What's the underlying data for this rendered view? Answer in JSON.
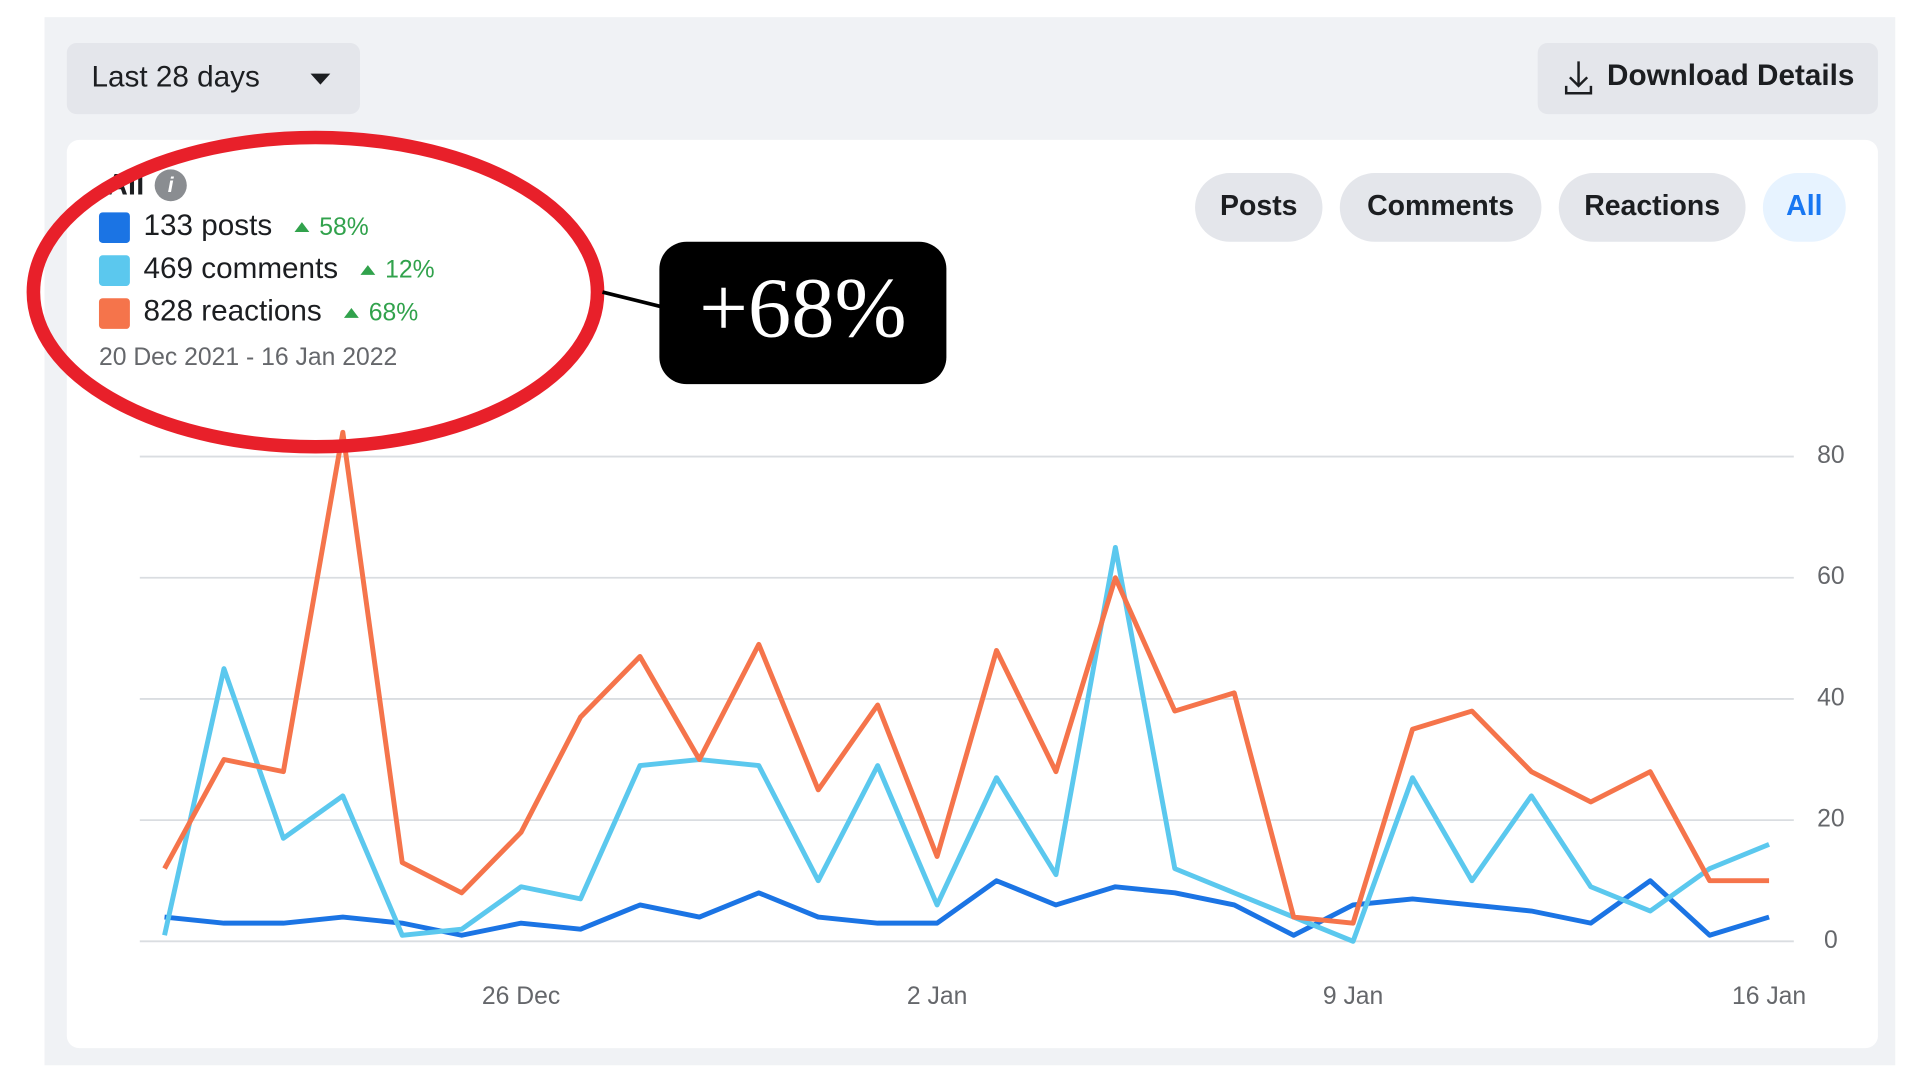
{
  "toolbar": {
    "date_range": "Last 28 days",
    "download": "Download Details"
  },
  "tabs": [
    "Posts",
    "Comments",
    "Reactions",
    "All"
  ],
  "summary": {
    "title": "All",
    "items": [
      {
        "label": "133 posts",
        "change": "58%"
      },
      {
        "label": "469 comments",
        "change": "12%"
      },
      {
        "label": "828 reactions",
        "change": "68%"
      }
    ],
    "date_range": "20 Dec 2021 - 16 Jan 2022"
  },
  "annotation": "+68%",
  "chart_data": {
    "type": "line",
    "categories": [
      null,
      null,
      null,
      null,
      null,
      null,
      "26 Dec",
      null,
      null,
      null,
      null,
      null,
      null,
      "2 Jan",
      null,
      null,
      null,
      null,
      null,
      null,
      "9 Jan",
      null,
      null,
      null,
      null,
      null,
      null,
      "16 Jan"
    ],
    "series": [
      {
        "name": "Posts",
        "color": "#1b74e4",
        "values": [
          4,
          3,
          3,
          4,
          3,
          1,
          3,
          2,
          6,
          4,
          8,
          4,
          3,
          3,
          10,
          6,
          9,
          8,
          6,
          1,
          6,
          7,
          6,
          5,
          3,
          10,
          1,
          4
        ]
      },
      {
        "name": "Comments",
        "color": "#5bc8ee",
        "values": [
          1,
          45,
          17,
          24,
          1,
          2,
          9,
          7,
          29,
          30,
          29,
          10,
          29,
          6,
          27,
          11,
          65,
          12,
          8,
          4,
          0,
          27,
          10,
          24,
          9,
          5,
          12,
          16
        ]
      },
      {
        "name": "Reactions",
        "color": "#f5744b",
        "values": [
          12,
          30,
          28,
          84,
          13,
          8,
          18,
          37,
          47,
          30,
          49,
          25,
          39,
          14,
          48,
          28,
          60,
          38,
          41,
          4,
          3,
          35,
          38,
          28,
          23,
          28,
          10,
          10
        ]
      }
    ],
    "ylim": [
      0,
      80
    ],
    "yticks": [
      0,
      20,
      40,
      60,
      80
    ],
    "grid": true
  }
}
